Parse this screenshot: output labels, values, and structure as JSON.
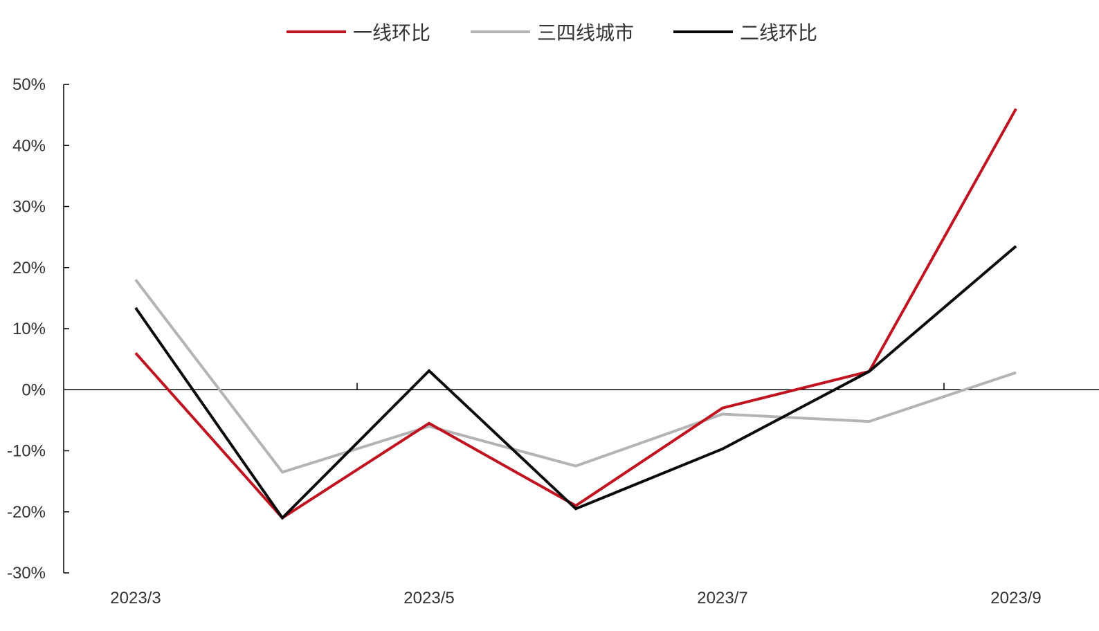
{
  "chart_data": {
    "type": "line",
    "title": "",
    "xlabel": "",
    "ylabel": "",
    "x": [
      "2023/3",
      "2023/4",
      "2023/5",
      "2023/6",
      "2023/7",
      "2023/8",
      "2023/9"
    ],
    "x_tick_labels": [
      "2023/3",
      "2023/5",
      "2023/7",
      "2023/9"
    ],
    "y_tick_labels": [
      "50%",
      "40%",
      "30%",
      "20%",
      "10%",
      "0%",
      "-10%",
      "-20%",
      "-30%"
    ],
    "ylim": [
      -30,
      50
    ],
    "y_unit": "%",
    "grid": false,
    "legend_position": "top",
    "series": [
      {
        "name": "一线环比",
        "color": "#c0121f",
        "values": [
          6,
          -21,
          -5.5,
          -19,
          -3,
          3,
          46
        ]
      },
      {
        "name": "三四线城市",
        "color": "#b4b4b4",
        "values": [
          18,
          -13.5,
          -6,
          -12.5,
          -4,
          -5.2,
          2.8
        ]
      },
      {
        "name": "二线环比",
        "color": "#0a0a0a",
        "values": [
          13.4,
          -21,
          3.1,
          -19.5,
          -9.7,
          3,
          23.5
        ]
      }
    ]
  }
}
